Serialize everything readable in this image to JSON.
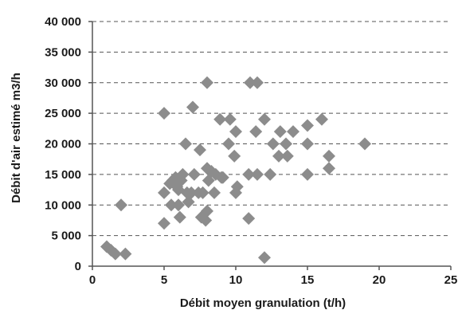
{
  "chart_data": {
    "type": "scatter",
    "title": "",
    "xlabel": "Débit moyen granulation (t/h)",
    "ylabel": "Débit d'air estimé  m3/h",
    "xlim": [
      0,
      25
    ],
    "ylim": [
      0,
      40000
    ],
    "xticks": [
      0,
      5,
      10,
      15,
      20,
      25
    ],
    "xtick_labels": [
      "0",
      "5",
      "10",
      "15",
      "20",
      "25"
    ],
    "yticks": [
      0,
      5000,
      10000,
      15000,
      20000,
      25000,
      30000,
      35000,
      40000
    ],
    "ytick_labels": [
      "0",
      "5 000",
      "10 000",
      "15 000",
      "20 000",
      "25 000",
      "30 000",
      "35 000",
      "40 000"
    ],
    "grid": "horizontal dashed",
    "marker": "diamond",
    "marker_color": "#8c8c8c",
    "series": [
      {
        "points": [
          [
            1.0,
            3200
          ],
          [
            1.3,
            2600
          ],
          [
            1.6,
            2000
          ],
          [
            2.0,
            10000
          ],
          [
            2.3,
            2000
          ],
          [
            5.0,
            25000
          ],
          [
            5.0,
            12000
          ],
          [
            5.0,
            7000
          ],
          [
            5.4,
            13500
          ],
          [
            5.5,
            10000
          ],
          [
            5.6,
            14000
          ],
          [
            5.8,
            14500
          ],
          [
            5.9,
            13000
          ],
          [
            6.0,
            12500
          ],
          [
            6.0,
            10000
          ],
          [
            6.1,
            8000
          ],
          [
            6.2,
            14000
          ],
          [
            6.3,
            15000
          ],
          [
            6.5,
            20000
          ],
          [
            6.6,
            12000
          ],
          [
            6.7,
            10500
          ],
          [
            6.9,
            12000
          ],
          [
            7.0,
            26000
          ],
          [
            7.1,
            15000
          ],
          [
            7.4,
            12000
          ],
          [
            7.5,
            19000
          ],
          [
            7.6,
            8000
          ],
          [
            7.7,
            12000
          ],
          [
            7.9,
            7500
          ],
          [
            8.0,
            30000
          ],
          [
            8.0,
            9000
          ],
          [
            8.0,
            16000
          ],
          [
            8.1,
            14000
          ],
          [
            8.3,
            15500
          ],
          [
            8.5,
            12000
          ],
          [
            8.6,
            15000
          ],
          [
            8.9,
            24000
          ],
          [
            9.0,
            14500
          ],
          [
            9.1,
            14500
          ],
          [
            9.5,
            20000
          ],
          [
            9.6,
            24000
          ],
          [
            9.9,
            18000
          ],
          [
            10.0,
            12000
          ],
          [
            10.0,
            22000
          ],
          [
            10.1,
            13000
          ],
          [
            10.9,
            7800
          ],
          [
            10.9,
            15000
          ],
          [
            11.0,
            30000
          ],
          [
            11.4,
            22000
          ],
          [
            11.5,
            30000
          ],
          [
            11.5,
            15000
          ],
          [
            12.0,
            1400
          ],
          [
            12.0,
            24000
          ],
          [
            12.4,
            15000
          ],
          [
            12.6,
            20000
          ],
          [
            13.0,
            18000
          ],
          [
            13.1,
            22000
          ],
          [
            13.5,
            20000
          ],
          [
            13.6,
            18000
          ],
          [
            14.0,
            22000
          ],
          [
            15.0,
            23000
          ],
          [
            15.0,
            20000
          ],
          [
            15.0,
            15000
          ],
          [
            16.0,
            24000
          ],
          [
            16.5,
            18000
          ],
          [
            16.5,
            16000
          ],
          [
            19.0,
            20000
          ]
        ]
      }
    ]
  }
}
